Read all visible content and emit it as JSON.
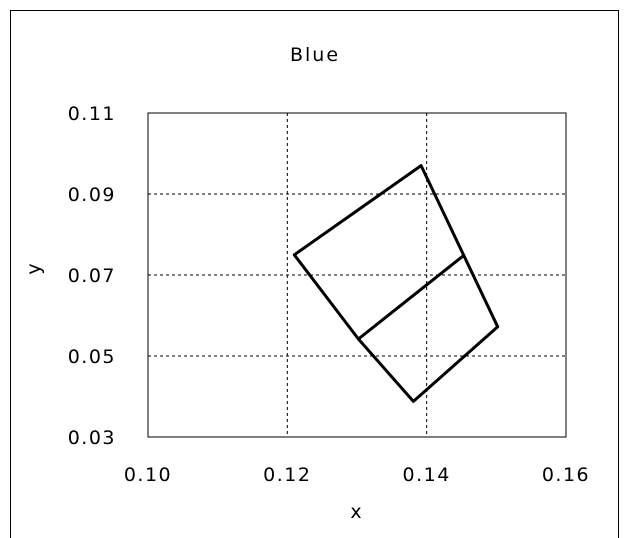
{
  "chart_data": {
    "type": "line",
    "title": "Blue",
    "xlabel": "x",
    "ylabel": "y",
    "xlim": [
      0.1,
      0.16
    ],
    "ylim": [
      0.03,
      0.11
    ],
    "grid": true,
    "legend": "none",
    "x_ticks": [
      "0.10",
      "0.12",
      "0.14",
      "0.16"
    ],
    "y_ticks": [
      "0.11",
      "0.09",
      "0.07",
      "0.05",
      "0.03"
    ],
    "x_tick_values": [
      0.1,
      0.12,
      0.14,
      0.16
    ],
    "y_tick_values": [
      0.11,
      0.09,
      0.07,
      0.05,
      0.03
    ],
    "series": [
      {
        "x": [
          0.121,
          0.1392,
          0.1502,
          0.1381,
          0.1302,
          0.121
        ],
        "y": [
          0.075,
          0.097,
          0.0572,
          0.0388,
          0.0542,
          0.075
        ]
      },
      {
        "x": [
          0.1302,
          0.1453
        ],
        "y": [
          0.0542,
          0.0748
        ]
      }
    ],
    "colors": {
      "line": "#000000",
      "grid": "#000000",
      "frame": "#000000",
      "background": "#ffffff"
    }
  }
}
